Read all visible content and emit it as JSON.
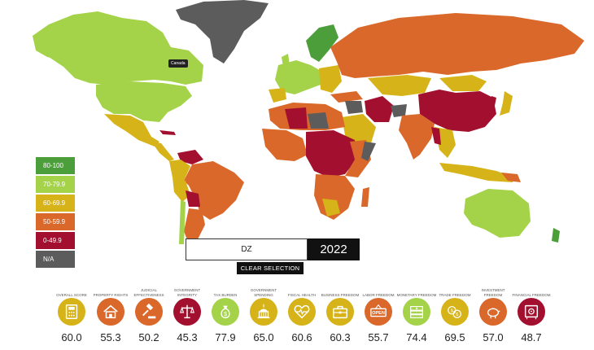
{
  "colors": {
    "band_80_100": "#4b9e3a",
    "band_70_79": "#a4d34a",
    "band_60_69": "#d6b319",
    "band_50_59": "#d9682a",
    "band_0_49": "#a3102f",
    "band_na": "#5c5c5c"
  },
  "legend": {
    "items": [
      {
        "label": "80-100",
        "color": "#4b9e3a"
      },
      {
        "label": "70-79.9",
        "color": "#a4d34a"
      },
      {
        "label": "60-69.9",
        "color": "#d6b319"
      },
      {
        "label": "50-59.9",
        "color": "#d9682a"
      },
      {
        "label": "0-49.9",
        "color": "#a3102f"
      },
      {
        "label": "N/A",
        "color": "#5c5c5c"
      }
    ]
  },
  "map": {
    "tooltip": "Canada"
  },
  "selection": {
    "country": "DZ",
    "year": "2022",
    "clear_label": "CLEAR SELECTION"
  },
  "indicators": [
    {
      "label": "Overall Score",
      "value": "60.0",
      "color": "#d6b319",
      "icon": "calculator-icon"
    },
    {
      "label": "Property Rights",
      "value": "55.3",
      "color": "#d9682a",
      "icon": "house-icon"
    },
    {
      "label": "Judicial Effectiveness",
      "value": "50.2",
      "color": "#d9682a",
      "icon": "gavel-icon"
    },
    {
      "label": "Government Integrity",
      "value": "45.3",
      "color": "#a3102f",
      "icon": "scales-icon"
    },
    {
      "label": "Tax Burden",
      "value": "77.9",
      "color": "#a4d34a",
      "icon": "money-bag-icon"
    },
    {
      "label": "Government Spending",
      "value": "65.0",
      "color": "#d6b319",
      "icon": "capitol-icon"
    },
    {
      "label": "Fiscal Health",
      "value": "60.6",
      "color": "#d6b319",
      "icon": "heart-pulse-icon"
    },
    {
      "label": "Business Freedom",
      "value": "60.3",
      "color": "#d6b319",
      "icon": "briefcase-icon"
    },
    {
      "label": "Labor Freedom",
      "value": "55.7",
      "color": "#d9682a",
      "icon": "open-sign-icon"
    },
    {
      "label": "Monetary Freedom",
      "value": "74.4",
      "color": "#a4d34a",
      "icon": "cash-stack-icon"
    },
    {
      "label": "Trade Freedom",
      "value": "69.5",
      "color": "#d6b319",
      "icon": "coins-icon"
    },
    {
      "label": "Investment Freedom",
      "value": "57.0",
      "color": "#d9682a",
      "icon": "piggy-bank-icon"
    },
    {
      "label": "Financial Freedom",
      "value": "48.7",
      "color": "#a3102f",
      "icon": "safe-icon"
    }
  ]
}
